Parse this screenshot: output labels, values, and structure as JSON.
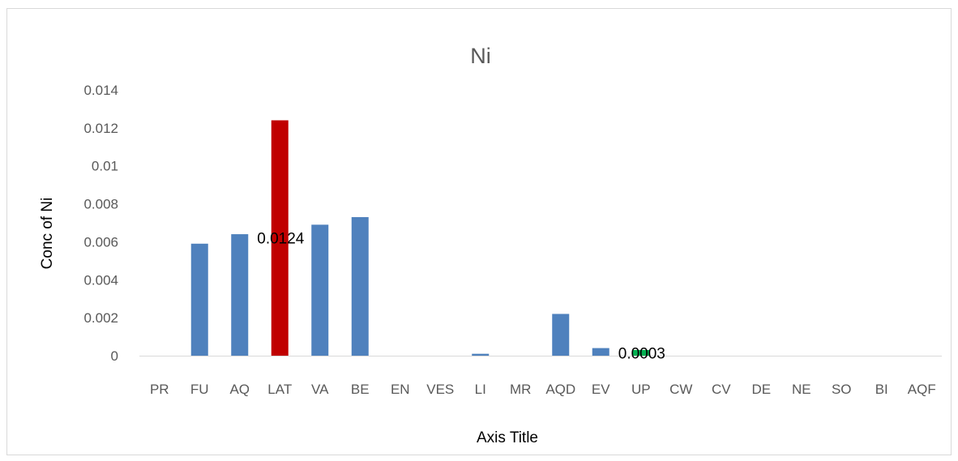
{
  "chart_data": {
    "type": "bar",
    "title": "Ni",
    "xlabel": "Axis Title",
    "ylabel": "Conc of Ni",
    "ylim": [
      0,
      0.014
    ],
    "yticks": [
      "0",
      "0.002",
      "0.004",
      "0.006",
      "0.008",
      "0.01",
      "0.012",
      "0.014"
    ],
    "grid": false,
    "categories": [
      "PR",
      "FU",
      "AQ",
      "LAT",
      "VA",
      "BE",
      "EN",
      "VES",
      "LI",
      "MR",
      "AQD",
      "EV",
      "UP",
      "CW",
      "CV",
      "DE",
      "NE",
      "SO",
      "BI",
      "AQF"
    ],
    "values": [
      0,
      0.0059,
      0.0064,
      0.0124,
      0.0069,
      0.0073,
      0,
      0,
      0.0001,
      0,
      0.0022,
      0.0004,
      0.0003,
      0,
      0,
      0,
      0,
      0,
      0,
      0
    ],
    "colors": {
      "default": "#4f81bd",
      "LAT": "#c00000",
      "UP": "#00b050"
    },
    "data_labels": [
      {
        "category": "LAT",
        "text": "0.0124"
      },
      {
        "category": "UP",
        "text": "0.0003"
      }
    ]
  }
}
